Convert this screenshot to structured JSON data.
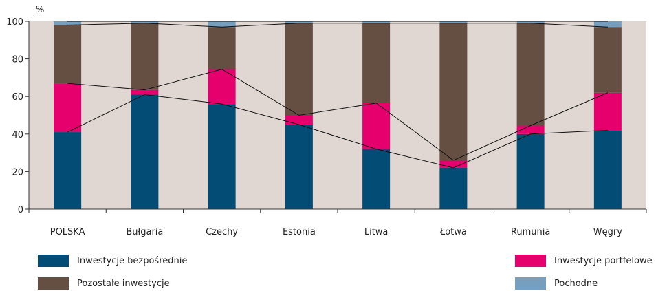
{
  "chart_data": {
    "type": "bar",
    "stacked": true,
    "title": "",
    "ylabel": "%",
    "xlabel": "",
    "ylim": [
      0,
      100
    ],
    "yticks": [
      0,
      20,
      40,
      60,
      80,
      100
    ],
    "categories": [
      "POLSKA",
      "Bułgaria",
      "Czechy",
      "Estonia",
      "Litwa",
      "Łotwa",
      "Rumunia",
      "Węgry"
    ],
    "series": [
      {
        "name": "Inwestycje bezpośrednie",
        "color": "#034c76",
        "values": [
          41,
          61,
          56,
          45,
          32,
          22,
          40,
          42
        ]
      },
      {
        "name": "Inwestycje portfelowe",
        "color": "#e5006d",
        "values": [
          26,
          2.5,
          18.5,
          5,
          24.5,
          4,
          4.5,
          20
        ]
      },
      {
        "name": "Pozostałe inwestycje",
        "color": "#654e42",
        "values": [
          31,
          35.5,
          22.5,
          49,
          42.5,
          73,
          54.5,
          35
        ]
      },
      {
        "name": "Pochodne",
        "color": "#769ebf",
        "values": [
          2,
          1,
          3,
          1,
          1,
          1,
          1,
          3
        ]
      }
    ],
    "connector_lines": true,
    "plot_background": "#e0d7d2",
    "grid": false,
    "legend_placement": "bottom"
  }
}
